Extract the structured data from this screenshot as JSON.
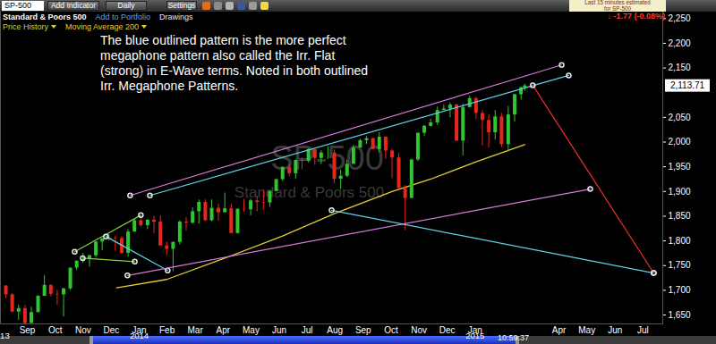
{
  "header": {
    "symbol": "SP-500",
    "buttons": [
      "Add Indicator",
      "Daily",
      "Settings"
    ],
    "name": "Standard & Poors 500",
    "links": [
      "Add to Portfolio",
      "Drawings"
    ],
    "notice": [
      "Last 15 minutes estimated",
      "for SP-500"
    ],
    "change": "↓ -1.77 (-0.08%)"
  },
  "chart_data": {
    "type": "candlestick",
    "watermark": {
      "symbol": "SP-500",
      "name": "Standard & Poors 500"
    },
    "annotation": [
      "The blue outlined pattern is the more perfect",
      "megaphone pattern also called the Irr. Flat",
      "(strong) in E-Wave terms. Noted in both outlined",
      "Irr. Megaphone Patterns."
    ],
    "series": [
      {
        "name": "Price History",
        "type": "candlestick",
        "x": [
          2013.603,
          2013.622,
          2013.641,
          2013.66,
          2013.679,
          2013.699,
          2013.718,
          2013.737,
          2013.756,
          2013.775,
          2013.795,
          2013.814,
          2013.833,
          2013.852,
          2013.871,
          2013.89,
          2013.91,
          2013.929,
          2013.948,
          2013.967,
          2013.986,
          2014.005,
          2014.025,
          2014.044,
          2014.063,
          2014.082,
          2014.101,
          2014.121,
          2014.14,
          2014.159,
          2014.178,
          2014.197,
          2014.216,
          2014.236,
          2014.255,
          2014.274,
          2014.293,
          2014.312,
          2014.332,
          2014.351,
          2014.37,
          2014.389,
          2014.408,
          2014.427,
          2014.447,
          2014.466,
          2014.485,
          2014.504,
          2014.523,
          2014.542,
          2014.562,
          2014.581,
          2014.6,
          2014.619,
          2014.638,
          2014.658,
          2014.677,
          2014.696,
          2014.715,
          2014.734,
          2014.753,
          2014.773,
          2014.792,
          2014.811,
          2014.83,
          2014.849,
          2014.868,
          2014.888,
          2014.907,
          2014.926,
          2014.945,
          2014.964,
          2014.984,
          2015.003,
          2015.022,
          2015.041,
          2015.06,
          2015.079,
          2015.099,
          2015.118,
          2015.137,
          2015.148
        ],
        "open": [
          1709,
          1691,
          1656,
          1663,
          1633,
          1655,
          1688,
          1710,
          1692,
          1691,
          1703,
          1745,
          1759,
          1762,
          1770,
          1798,
          1804,
          1806,
          1805,
          1775,
          1818,
          1841,
          1831,
          1842,
          1838,
          1790,
          1783,
          1797,
          1838,
          1836,
          1859,
          1878,
          1841,
          1866,
          1857,
          1865,
          1815,
          1864,
          1863,
          1881,
          1878,
          1877,
          1900,
          1924,
          1949,
          1936,
          1963,
          1961,
          1985,
          1967,
          1978,
          1978,
          1925,
          1931,
          1955,
          1988,
          2003,
          2007,
          1985,
          2010,
          1982,
          1968,
          1906,
          1886,
          1964,
          2018,
          2032,
          2039,
          2064,
          2067,
          2075,
          2002,
          2070,
          2088,
          2058,
          2044,
          2019,
          2051,
          1995,
          2055,
          2096,
          2110
        ],
        "high": [
          1709,
          1694,
          1670,
          1670,
          1666,
          1689,
          1730,
          1711,
          1700,
          1704,
          1745,
          1760,
          1775,
          1771,
          1798,
          1805,
          1813,
          1810,
          1809,
          1823,
          1844,
          1849,
          1843,
          1850,
          1851,
          1798,
          1798,
          1841,
          1847,
          1867,
          1883,
          1883,
          1883,
          1875,
          1897,
          1875,
          1865,
          1884,
          1885,
          1891,
          1902,
          1901,
          1925,
          1950,
          1955,
          1964,
          1968,
          1986,
          1985,
          1983,
          1991,
          1984,
          1943,
          1964,
          1993,
          2006,
          2011,
          2008,
          2019,
          2011,
          1985,
          1977,
          1912,
          1965,
          2018,
          2034,
          2046,
          2071,
          2075,
          2079,
          2077,
          2077,
          2093,
          2091,
          2064,
          2056,
          2064,
          2058,
          2072,
          2097,
          2111,
          2117
        ],
        "low": [
          1684,
          1655,
          1639,
          1627,
          1633,
          1655,
          1688,
          1687,
          1670,
          1646,
          1700,
          1740,
          1755,
          1747,
          1765,
          1780,
          1800,
          1779,
          1772,
          1767,
          1818,
          1827,
          1823,
          1815,
          1790,
          1770,
          1738,
          1792,
          1820,
          1834,
          1834,
          1839,
          1839,
          1840,
          1857,
          1815,
          1814,
          1858,
          1851,
          1859,
          1862,
          1868,
          1900,
          1920,
          1930,
          1925,
          1944,
          1958,
          1953,
          1955,
          1965,
          1916,
          1904,
          1928,
          1955,
          1988,
          1995,
          1985,
          1978,
          1965,
          1926,
          1906,
          1821,
          1886,
          1961,
          2012,
          2030,
          2034,
          2064,
          2049,
          2002,
          1972,
          2069,
          2046,
          1992,
          1988,
          2004,
          1989,
          1980,
          2041,
          2085,
          2103
        ],
        "close": [
          1691,
          1656,
          1663,
          1633,
          1655,
          1688,
          1710,
          1692,
          1691,
          1703,
          1745,
          1759,
          1762,
          1770,
          1798,
          1804,
          1806,
          1805,
          1775,
          1818,
          1841,
          1831,
          1842,
          1838,
          1790,
          1783,
          1797,
          1838,
          1836,
          1859,
          1878,
          1841,
          1866,
          1857,
          1865,
          1815,
          1864,
          1863,
          1881,
          1878,
          1877,
          1900,
          1924,
          1949,
          1936,
          1963,
          1961,
          1985,
          1967,
          1978,
          1978,
          1925,
          1931,
          1955,
          1988,
          2003,
          2007,
          1985,
          2010,
          1982,
          1968,
          1906,
          1886,
          1964,
          2018,
          2032,
          2039,
          2064,
          2067,
          2075,
          2002,
          2070,
          2088,
          2058,
          2044,
          2019,
          2051,
          1995,
          2055,
          2096,
          2110,
          2113.71
        ]
      },
      {
        "name": "Moving Average 200",
        "type": "line",
        "color": "#e3cf2f",
        "x": [
          2013.933,
          2014.082,
          2014.255,
          2014.427,
          2014.581,
          2014.753,
          2014.868,
          2015.003,
          2015.148
        ],
        "values": [
          1705,
          1722,
          1765,
          1810,
          1855,
          1900,
          1925,
          1960,
          1995
        ]
      }
    ],
    "trend_lines": [
      {
        "color": "#7ed13c",
        "x": [
          2013.808,
          2014.005
        ],
        "y": [
          1778,
          1852
        ]
      },
      {
        "color": "#7ed13c",
        "x": [
          2013.832,
          2013.987
        ],
        "y": [
          1765,
          1758
        ]
      },
      {
        "color": "#5fd4e8",
        "x": [
          2013.901,
          2014.085
        ],
        "y": [
          1809,
          1740
        ]
      },
      {
        "color": "#d77ad7",
        "x": [
          2013.965,
          2015.343
        ],
        "y": [
          1730,
          1905
        ]
      },
      {
        "color": "#d77ad7",
        "x": [
          2013.973,
          2015.258
        ],
        "y": [
          1892,
          2156
        ]
      },
      {
        "color": "#5fd4e8",
        "x": [
          2014.032,
          2015.279
        ],
        "y": [
          1892,
          2135
        ]
      },
      {
        "color": "#5fd4e8",
        "x": [
          2014.573,
          2015.532
        ],
        "y": [
          1862,
          1735
        ]
      },
      {
        "color": "#e8332a",
        "x": [
          2015.172,
          2015.532
        ],
        "y": [
          2115,
          1735
        ]
      }
    ],
    "last_price": {
      "value": 2113.71,
      "label": "2,113.71"
    },
    "time_label": "10:59:37",
    "xlim": [
      2013.587,
      2015.559
    ],
    "xticks": [
      {
        "value": 2013.667,
        "label": "Sep"
      },
      {
        "value": 2013.75,
        "label": "Oct"
      },
      {
        "value": 2013.833,
        "label": "Nov"
      },
      {
        "value": 2013.917,
        "label": "Dec"
      },
      {
        "value": 2014.0,
        "label": "Jan"
      },
      {
        "value": 2014.083,
        "label": "Feb"
      },
      {
        "value": 2014.167,
        "label": "Mar"
      },
      {
        "value": 2014.25,
        "label": "Apr"
      },
      {
        "value": 2014.333,
        "label": "May"
      },
      {
        "value": 2014.417,
        "label": "Jun"
      },
      {
        "value": 2014.5,
        "label": "Jul"
      },
      {
        "value": 2014.583,
        "label": "Aug"
      },
      {
        "value": 2014.667,
        "label": "Sep"
      },
      {
        "value": 2014.75,
        "label": "Oct"
      },
      {
        "value": 2014.833,
        "label": "Nov"
      },
      {
        "value": 2014.917,
        "label": "Dec"
      },
      {
        "value": 2015.0,
        "label": "Jan"
      },
      {
        "value": 2015.25,
        "label": "Apr"
      },
      {
        "value": 2015.333,
        "label": "May"
      },
      {
        "value": 2015.417,
        "label": "Jun"
      },
      {
        "value": 2015.5,
        "label": "Jul"
      }
    ],
    "year_labels": [
      {
        "value": 2013.6,
        "label": "13"
      },
      {
        "value": 2014.0,
        "label": "2014"
      },
      {
        "value": 2015.0,
        "label": "2015"
      }
    ],
    "ylim": [
      1632,
      2265
    ],
    "yticks": [
      {
        "value": 1650,
        "label": "1,650"
      },
      {
        "value": 1700,
        "label": "1,700"
      },
      {
        "value": 1750,
        "label": "1,750"
      },
      {
        "value": 1800,
        "label": "1,800"
      },
      {
        "value": 1850,
        "label": "1,850"
      },
      {
        "value": 1900,
        "label": "1,900"
      },
      {
        "value": 1950,
        "label": "1,950"
      },
      {
        "value": 2000,
        "label": "2,000"
      },
      {
        "value": 2050,
        "label": "2,050"
      },
      {
        "value": 2150,
        "label": "2,150"
      },
      {
        "value": 2200,
        "label": "2,200"
      },
      {
        "value": 2250,
        "label": "2,250"
      }
    ],
    "grid": false
  }
}
